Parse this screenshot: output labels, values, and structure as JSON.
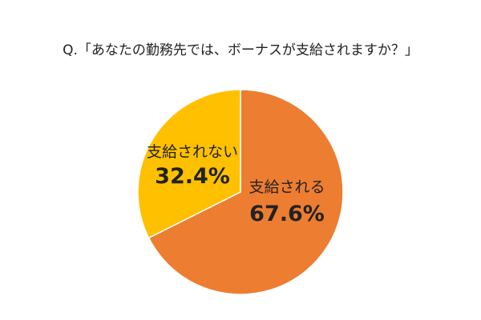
{
  "chart_data": {
    "type": "pie",
    "title": "Q.「あなたの勤務先では、ボーナスが支給されますか？」",
    "slices": [
      {
        "label": "支給される",
        "value": 67.6,
        "value_label": "67.6%",
        "color": "#ED7D31"
      },
      {
        "label": "支給されない",
        "value": 32.4,
        "value_label": "32.4%",
        "color": "#FFC000"
      }
    ],
    "start": "12 o'clock",
    "direction": "clockwise",
    "legend": "none",
    "data_labels": "inside"
  }
}
